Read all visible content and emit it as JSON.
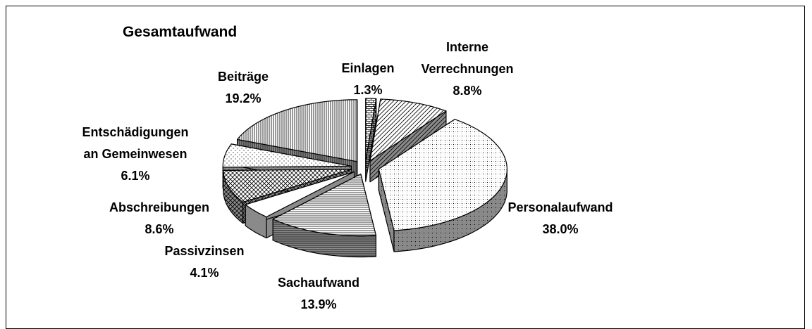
{
  "chart_data": {
    "type": "pie3d",
    "title": "Gesamtaufwand",
    "categories": [
      "Einlagen",
      "Interne Verrechnungen",
      "Personalaufwand",
      "Sachaufwand",
      "Passivzinsen",
      "Abschreibungen",
      "Entschädigungen an Gemeinwesen",
      "Beiträge"
    ],
    "values": [
      1.3,
      8.8,
      38.0,
      13.9,
      4.1,
      8.6,
      6.1,
      19.2
    ],
    "value_labels": [
      "1.3%",
      "8.8%",
      "38.0%",
      "13.9%",
      "4.1%",
      "8.6%",
      "6.1%",
      "19.2%"
    ],
    "color": "#000000"
  }
}
